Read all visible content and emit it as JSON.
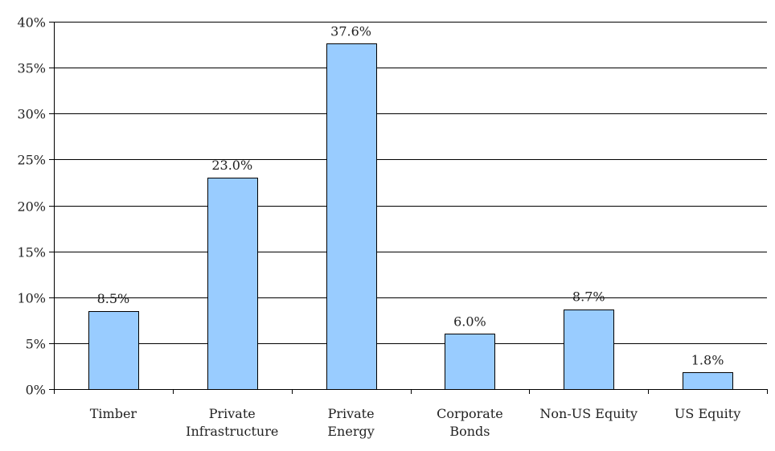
{
  "chart_data": {
    "type": "bar",
    "categories": [
      [
        "Timber"
      ],
      [
        "Private",
        "Infrastructure"
      ],
      [
        "Private",
        "Energy"
      ],
      [
        "Corporate",
        "Bonds"
      ],
      [
        "Non-US Equity"
      ],
      [
        "US Equity"
      ]
    ],
    "values": [
      8.5,
      23.0,
      37.6,
      6.0,
      8.7,
      1.8
    ],
    "data_labels": [
      "8.5%",
      "23.0%",
      "37.6%",
      "6.0%",
      "8.7%",
      "1.8%"
    ],
    "ylim": [
      0,
      40
    ],
    "yticks": [
      0,
      5,
      10,
      15,
      20,
      25,
      30,
      35,
      40
    ],
    "ytick_labels": [
      "0%",
      "5%",
      "10%",
      "15%",
      "20%",
      "25%",
      "30%",
      "35%",
      "40%"
    ],
    "grid": true,
    "bar_color": "#99ccff",
    "title": "",
    "xlabel": "",
    "ylabel": ""
  }
}
